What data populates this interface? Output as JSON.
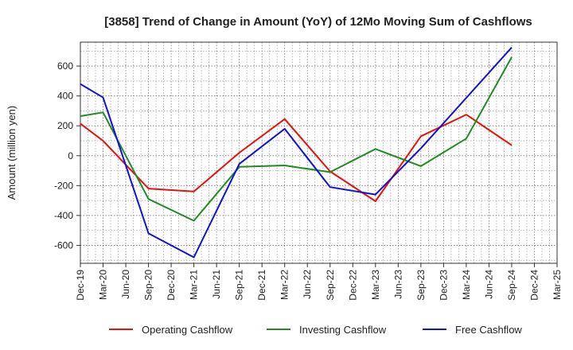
{
  "chart_data": {
    "type": "line",
    "title": "[3858]  Trend of Change in Amount (YoY) of 12Mo Moving Sum of Cashflows",
    "xlabel": "",
    "ylabel": "Amount (million yen)",
    "ylim": [
      -720,
      760
    ],
    "yticks": [
      -600,
      -400,
      -200,
      0,
      200,
      400,
      600
    ],
    "grid": true,
    "legend_position": "bottom",
    "categories": [
      "Dec-19",
      "Mar-20",
      "Jun-20",
      "Sep-20",
      "Dec-20",
      "Mar-21",
      "Jun-21",
      "Sep-21",
      "Dec-21",
      "Mar-22",
      "Jun-22",
      "Sep-22",
      "Dec-22",
      "Mar-23",
      "Jun-23",
      "Sep-23",
      "Dec-23",
      "Mar-24",
      "Jun-24",
      "Sep-24",
      "Dec-24",
      "Mar-25"
    ],
    "series": [
      {
        "name": "Operating Cashflow",
        "color": "#e8120c",
        "values": [
          215,
          100,
          null,
          -220,
          null,
          -240,
          null,
          20,
          null,
          245,
          null,
          -105,
          null,
          -305,
          null,
          130,
          null,
          275,
          null,
          70,
          null,
          null
        ]
      },
      {
        "name": "Investing Cashflow",
        "color": "#228b22",
        "values": [
          265,
          290,
          null,
          -290,
          null,
          -435,
          null,
          -75,
          null,
          -65,
          null,
          -110,
          null,
          45,
          null,
          -70,
          null,
          115,
          null,
          660,
          null,
          null
        ]
      },
      {
        "name": "Free Cashflow",
        "color": "#1212d4",
        "values": [
          480,
          390,
          null,
          -520,
          null,
          -680,
          null,
          -55,
          null,
          180,
          null,
          -210,
          null,
          -260,
          null,
          50,
          null,
          null,
          null,
          725,
          null,
          null
        ]
      }
    ]
  }
}
